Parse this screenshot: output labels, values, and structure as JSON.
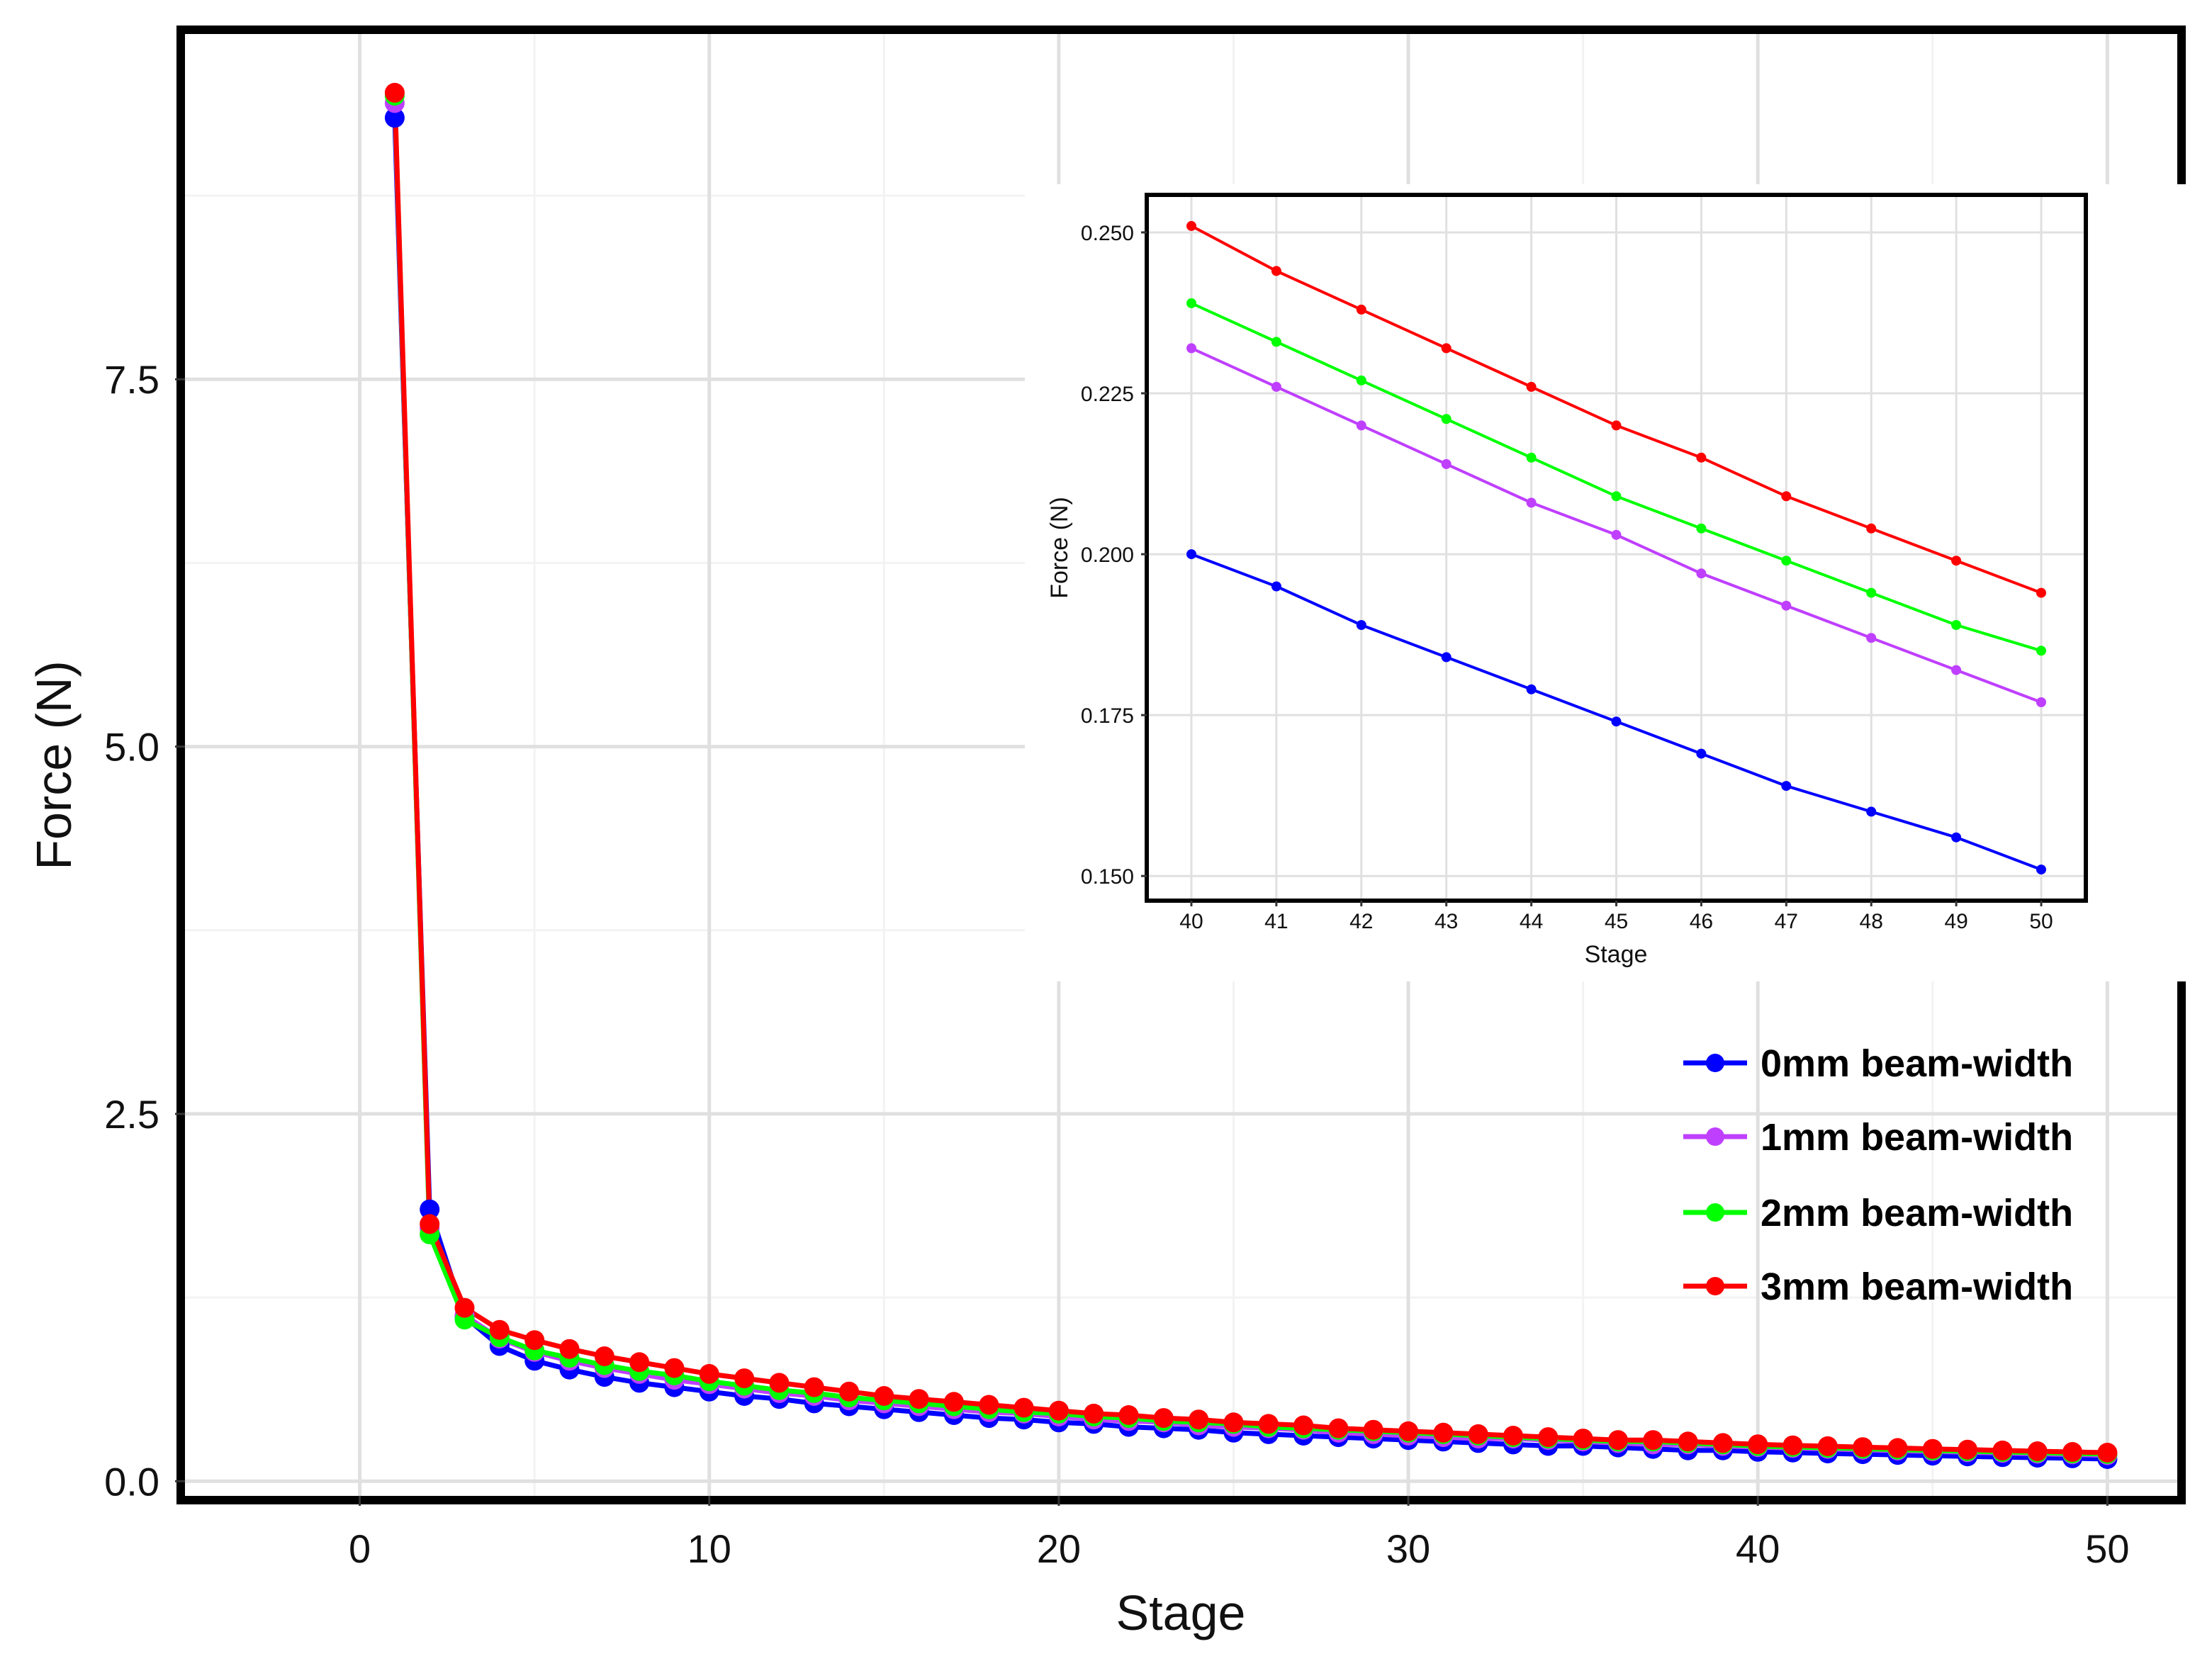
{
  "chart_data": [
    {
      "id": "main",
      "type": "line",
      "xlabel": "Stage",
      "ylabel": "Force (N)",
      "xlim": [
        -5,
        52
      ],
      "ylim": [
        -0.1,
        9.85
      ],
      "xticks": [
        0,
        10,
        20,
        30,
        40,
        50
      ],
      "yticks": [
        0.0,
        2.5,
        5.0,
        7.5
      ],
      "ytick_labels": [
        "0.0",
        "2.5",
        "5.0",
        "7.5"
      ],
      "grid": true,
      "legend_position": "bottom-right",
      "x": [
        1,
        2,
        3,
        4,
        5,
        6,
        7,
        8,
        9,
        10,
        11,
        12,
        13,
        14,
        15,
        16,
        17,
        18,
        19,
        20,
        21,
        22,
        23,
        24,
        25,
        26,
        27,
        28,
        29,
        30,
        31,
        32,
        33,
        34,
        35,
        36,
        37,
        38,
        39,
        40,
        41,
        42,
        43,
        44,
        45,
        46,
        47,
        48,
        49,
        50
      ],
      "series": [
        {
          "name": "0mm beam-width",
          "color": "#0000ff",
          "values": [
            9.28,
            1.85,
            1.12,
            0.92,
            0.82,
            0.76,
            0.71,
            0.67,
            0.64,
            0.61,
            0.58,
            0.56,
            0.53,
            0.51,
            0.49,
            0.47,
            0.45,
            0.43,
            0.42,
            0.4,
            0.39,
            0.37,
            0.36,
            0.35,
            0.33,
            0.32,
            0.31,
            0.3,
            0.29,
            0.28,
            0.27,
            0.26,
            0.25,
            0.24,
            0.24,
            0.23,
            0.22,
            0.21,
            0.21,
            0.2,
            0.195,
            0.189,
            0.184,
            0.179,
            0.174,
            0.169,
            0.164,
            0.16,
            0.156,
            0.151
          ]
        },
        {
          "name": "1mm beam-width",
          "color": "#bf3fff",
          "values": [
            9.38,
            1.72,
            1.13,
            0.97,
            0.88,
            0.82,
            0.77,
            0.73,
            0.69,
            0.66,
            0.63,
            0.6,
            0.58,
            0.55,
            0.53,
            0.51,
            0.49,
            0.47,
            0.46,
            0.44,
            0.42,
            0.41,
            0.4,
            0.38,
            0.37,
            0.36,
            0.35,
            0.33,
            0.32,
            0.31,
            0.3,
            0.29,
            0.29,
            0.28,
            0.27,
            0.26,
            0.25,
            0.25,
            0.24,
            0.232,
            0.226,
            0.22,
            0.214,
            0.208,
            0.203,
            0.197,
            0.192,
            0.187,
            0.182,
            0.177
          ]
        },
        {
          "name": "2mm beam-width",
          "color": "#00ff00",
          "values": [
            9.43,
            1.68,
            1.1,
            0.98,
            0.89,
            0.84,
            0.79,
            0.75,
            0.72,
            0.68,
            0.65,
            0.62,
            0.6,
            0.57,
            0.55,
            0.53,
            0.51,
            0.49,
            0.47,
            0.46,
            0.44,
            0.43,
            0.41,
            0.4,
            0.39,
            0.37,
            0.36,
            0.35,
            0.34,
            0.33,
            0.32,
            0.31,
            0.3,
            0.29,
            0.28,
            0.27,
            0.27,
            0.26,
            0.25,
            0.239,
            0.233,
            0.227,
            0.221,
            0.215,
            0.209,
            0.204,
            0.199,
            0.194,
            0.189,
            0.185
          ]
        },
        {
          "name": "3mm beam-width",
          "color": "#ff0000",
          "values": [
            9.45,
            1.75,
            1.18,
            1.03,
            0.96,
            0.9,
            0.85,
            0.81,
            0.77,
            0.73,
            0.7,
            0.67,
            0.64,
            0.61,
            0.58,
            0.56,
            0.54,
            0.52,
            0.5,
            0.48,
            0.46,
            0.45,
            0.43,
            0.42,
            0.4,
            0.39,
            0.38,
            0.36,
            0.35,
            0.34,
            0.33,
            0.32,
            0.31,
            0.3,
            0.29,
            0.28,
            0.28,
            0.27,
            0.26,
            0.251,
            0.244,
            0.238,
            0.232,
            0.226,
            0.22,
            0.215,
            0.209,
            0.204,
            0.199,
            0.194
          ]
        }
      ]
    },
    {
      "id": "inset",
      "type": "line",
      "xlabel": "Stage",
      "ylabel": "Force (N)",
      "xlim": [
        39.5,
        50.5
      ],
      "ylim": [
        0.1465,
        0.2555
      ],
      "xticks": [
        40,
        41,
        42,
        43,
        44,
        45,
        46,
        47,
        48,
        49,
        50
      ],
      "yticks": [
        0.15,
        0.175,
        0.2,
        0.225,
        0.25
      ],
      "ytick_labels": [
        "0.150",
        "0.175",
        "0.200",
        "0.225",
        "0.250"
      ],
      "grid": true,
      "x": [
        40,
        41,
        42,
        43,
        44,
        45,
        46,
        47,
        48,
        49,
        50
      ],
      "series": [
        {
          "name": "0mm beam-width",
          "color": "#0000ff",
          "values": [
            0.2,
            0.195,
            0.189,
            0.184,
            0.179,
            0.174,
            0.169,
            0.164,
            0.16,
            0.156,
            0.151
          ]
        },
        {
          "name": "1mm beam-width",
          "color": "#bf3fff",
          "values": [
            0.232,
            0.226,
            0.22,
            0.214,
            0.208,
            0.203,
            0.197,
            0.192,
            0.187,
            0.182,
            0.177
          ]
        },
        {
          "name": "2mm beam-width",
          "color": "#00ff00",
          "values": [
            0.239,
            0.233,
            0.227,
            0.221,
            0.215,
            0.209,
            0.204,
            0.199,
            0.194,
            0.189,
            0.185
          ]
        },
        {
          "name": "3mm beam-width",
          "color": "#ff0000",
          "values": [
            0.251,
            0.244,
            0.238,
            0.232,
            0.226,
            0.22,
            0.215,
            0.209,
            0.204,
            0.199,
            0.194
          ]
        }
      ]
    }
  ]
}
